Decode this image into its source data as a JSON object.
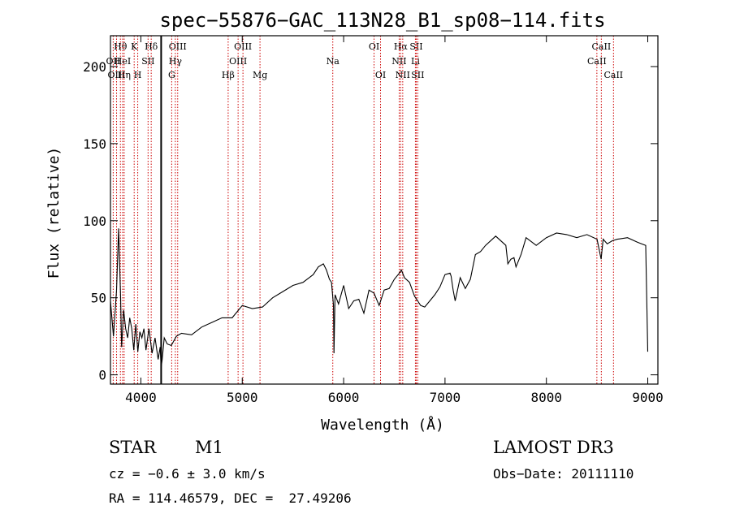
{
  "chart_data": {
    "type": "line",
    "title": "spec−55876−GAC_113N28_B1_sp08−114.fits",
    "xlabel": "Wavelength (Å)",
    "ylabel": "Flux (relative)",
    "xlim": [
      3700,
      9100
    ],
    "ylim": [
      -6,
      220
    ],
    "xticks": [
      4000,
      5000,
      6000,
      7000,
      8000,
      9000
    ],
    "yticks": [
      0,
      50,
      100,
      150,
      200
    ],
    "grid": false,
    "legend": "none",
    "line_color": "#000000",
    "marker_color": "#cc0000",
    "spectrum": {
      "x": [
        3700,
        3730,
        3760,
        3780,
        3800,
        3810,
        3830,
        3850,
        3870,
        3890,
        3910,
        3930,
        3950,
        3970,
        3990,
        4010,
        4030,
        4050,
        4080,
        4110,
        4140,
        4170,
        4190,
        4200,
        4210,
        4230,
        4260,
        4300,
        4350,
        4400,
        4500,
        4600,
        4700,
        4800,
        4900,
        5000,
        5100,
        5200,
        5300,
        5400,
        5500,
        5600,
        5700,
        5750,
        5800,
        5830,
        5860,
        5880,
        5900,
        5905,
        5915,
        5950,
        6000,
        6050,
        6100,
        6150,
        6200,
        6250,
        6300,
        6350,
        6400,
        6450,
        6500,
        6550,
        6570,
        6600,
        6650,
        6700,
        6730,
        6760,
        6800,
        6850,
        6900,
        6950,
        7000,
        7050,
        7060,
        7080,
        7100,
        7150,
        7200,
        7250,
        7300,
        7350,
        7400,
        7500,
        7600,
        7620,
        7650,
        7680,
        7700,
        7750,
        7800,
        7900,
        8000,
        8100,
        8200,
        8300,
        8400,
        8500,
        8540,
        8560,
        8600,
        8650,
        8700,
        8800,
        8900,
        8980,
        9000
      ],
      "y": [
        48,
        25,
        55,
        95,
        50,
        18,
        42,
        30,
        24,
        37,
        30,
        16,
        33,
        15,
        28,
        24,
        30,
        16,
        30,
        14,
        24,
        10,
        18,
        5,
        10,
        24,
        20,
        19,
        25,
        27,
        26,
        31,
        34,
        37,
        37,
        45,
        43,
        44,
        50,
        54,
        58,
        60,
        65,
        70,
        72,
        68,
        62,
        60,
        45,
        14,
        52,
        46,
        58,
        43,
        48,
        49,
        40,
        55,
        53,
        45,
        55,
        56,
        62,
        66,
        68,
        63,
        60,
        51,
        48,
        45,
        44,
        48,
        52,
        57,
        65,
        66,
        64,
        55,
        48,
        63,
        56,
        62,
        78,
        80,
        84,
        90,
        84,
        72,
        75,
        76,
        70,
        78,
        89,
        84,
        89,
        92,
        91,
        89,
        91,
        88,
        75,
        88,
        85,
        87,
        88,
        89,
        86,
        84,
        15
      ]
    },
    "lines": [
      {
        "label": "Hθ",
        "x": 3798,
        "row": 0
      },
      {
        "label": "OII",
        "x": 3727,
        "row": 1
      },
      {
        "label": "OIII",
        "x": 3760,
        "row": 2
      },
      {
        "label": "HeI",
        "x": 3820,
        "row": 1
      },
      {
        "label": "Hη",
        "x": 3835,
        "row": 2
      },
      {
        "label": "K",
        "x": 3934,
        "row": 0
      },
      {
        "label": "SII",
        "x": 4071,
        "row": 1
      },
      {
        "label": "H",
        "x": 3969,
        "row": 2
      },
      {
        "label": "Hδ",
        "x": 4102,
        "row": 0
      },
      {
        "label": "OIII",
        "x": 4363,
        "row": 0
      },
      {
        "label": "Hγ",
        "x": 4340,
        "row": 1
      },
      {
        "label": "G",
        "x": 4304,
        "row": 2
      },
      {
        "label": "OIII",
        "x": 5007,
        "row": 0
      },
      {
        "label": "OIII",
        "x": 4959,
        "row": 1
      },
      {
        "label": "Hβ",
        "x": 4861,
        "row": 2
      },
      {
        "label": "Mg",
        "x": 5175,
        "row": 2
      },
      {
        "label": "Na",
        "x": 5893,
        "row": 1
      },
      {
        "label": "OI",
        "x": 6300,
        "row": 0
      },
      {
        "label": "OI",
        "x": 6364,
        "row": 2
      },
      {
        "label": "Hα",
        "x": 6563,
        "row": 0
      },
      {
        "label": "NII",
        "x": 6548,
        "row": 1
      },
      {
        "label": "NII",
        "x": 6583,
        "row": 2
      },
      {
        "label": "SII",
        "x": 6716,
        "row": 0
      },
      {
        "label": "Li",
        "x": 6708,
        "row": 1
      },
      {
        "label": "SII",
        "x": 6731,
        "row": 2
      },
      {
        "label": "CaII",
        "x": 8542,
        "row": 0
      },
      {
        "label": "CaII",
        "x": 8498,
        "row": 1
      },
      {
        "label": "CaII",
        "x": 8662,
        "row": 2
      }
    ],
    "solid_marker_x": 4200
  },
  "info": {
    "class_label": "STAR",
    "subclass": "M1",
    "survey": "LAMOST DR3",
    "cz": "cz = −0.6 ± 3.0 km/s",
    "obs_date": "Obs−Date: 20111110",
    "coords": "RA = 114.46579, DEC =  27.49206"
  }
}
